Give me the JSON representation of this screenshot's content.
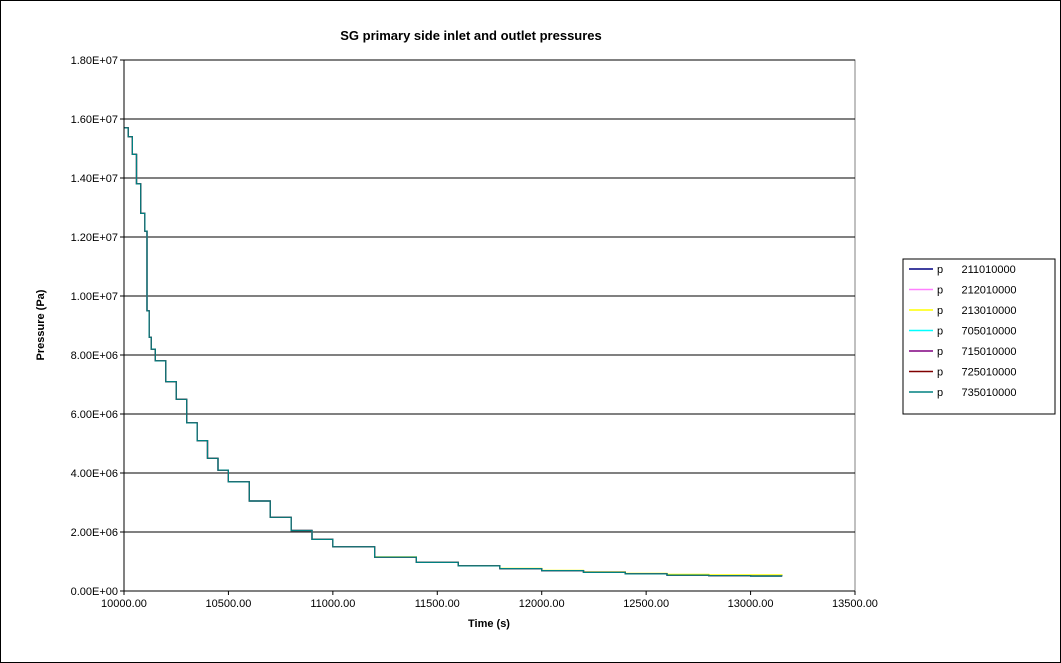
{
  "chart_data": {
    "type": "line",
    "title": "SG primary side inlet and outlet pressures",
    "xlabel": "Time (s)",
    "ylabel": "Pressure (Pa)",
    "xlim": [
      10000,
      13500
    ],
    "ylim": [
      0,
      18000000
    ],
    "x_ticks": [
      10000,
      10500,
      11000,
      11500,
      12000,
      12500,
      13000,
      13500
    ],
    "x_tick_labels": [
      "10000.00",
      "10500.00",
      "11000.00",
      "11500.00",
      "12000.00",
      "12500.00",
      "13000.00",
      "13500.00"
    ],
    "y_ticks": [
      0,
      2000000,
      4000000,
      6000000,
      8000000,
      10000000,
      12000000,
      14000000,
      16000000,
      18000000
    ],
    "y_tick_labels": [
      "0.00E+00",
      "2.00E+06",
      "4.00E+06",
      "6.00E+06",
      "8.00E+06",
      "1.00E+07",
      "1.20E+07",
      "1.40E+07",
      "1.60E+07",
      "1.80E+07"
    ],
    "grid": "horizontal",
    "legend_position": "right",
    "x": [
      10000,
      10020,
      10040,
      10060,
      10080,
      10100,
      10110,
      10120,
      10130,
      10150,
      10200,
      10250,
      10300,
      10350,
      10400,
      10450,
      10500,
      10600,
      10700,
      10800,
      10900,
      11000,
      11200,
      11400,
      11600,
      11800,
      12000,
      12200,
      12400,
      12600,
      12800,
      13000,
      13150
    ],
    "series": [
      {
        "name": "p      211010000",
        "color": "#000080",
        "values": [
          15700000,
          15400000,
          14800000,
          13800000,
          12800000,
          12200000,
          9500000,
          8600000,
          8200000,
          7800000,
          7100000,
          6500000,
          5700000,
          5100000,
          4500000,
          4100000,
          3700000,
          3050000,
          2500000,
          2050000,
          1750000,
          1500000,
          1150000,
          970000,
          850000,
          760000,
          690000,
          630000,
          580000,
          540000,
          520000,
          510000,
          500000
        ]
      },
      {
        "name": "p      212010000",
        "color": "#ff80ff",
        "values": [
          15700000,
          15400000,
          14800000,
          13800000,
          12800000,
          12200000,
          9500000,
          8600000,
          8200000,
          7800000,
          7100000,
          6500000,
          5700000,
          5100000,
          4500000,
          4100000,
          3700000,
          3050000,
          2500000,
          2050000,
          1750000,
          1500000,
          1150000,
          970000,
          850000,
          760000,
          690000,
          630000,
          580000,
          545000,
          525000,
          515000,
          505000
        ]
      },
      {
        "name": "p      213010000",
        "color": "#ffff00",
        "values": [
          15700000,
          15400000,
          14800000,
          13800000,
          12800000,
          12200000,
          9500000,
          8600000,
          8200000,
          7800000,
          7100000,
          6500000,
          5700000,
          5100000,
          4500000,
          4100000,
          3700000,
          3050000,
          2500000,
          2050000,
          1750000,
          1500000,
          1160000,
          980000,
          860000,
          770000,
          700000,
          650000,
          600000,
          565000,
          550000,
          545000,
          540000
        ]
      },
      {
        "name": "p      705010000",
        "color": "#00ffff",
        "values": [
          15700000,
          15400000,
          14800000,
          13800000,
          12800000,
          12200000,
          9500000,
          8600000,
          8200000,
          7800000,
          7100000,
          6500000,
          5700000,
          5100000,
          4500000,
          4100000,
          3700000,
          3050000,
          2500000,
          2050000,
          1750000,
          1500000,
          1150000,
          970000,
          850000,
          760000,
          690000,
          630000,
          580000,
          540000,
          520000,
          510000,
          500000
        ]
      },
      {
        "name": "p      715010000",
        "color": "#800080",
        "values": [
          15700000,
          15400000,
          14800000,
          13800000,
          12800000,
          12200000,
          9500000,
          8600000,
          8200000,
          7800000,
          7100000,
          6500000,
          5700000,
          5100000,
          4500000,
          4100000,
          3700000,
          3050000,
          2500000,
          2050000,
          1750000,
          1500000,
          1150000,
          970000,
          850000,
          760000,
          690000,
          630000,
          580000,
          540000,
          520000,
          510000,
          500000
        ]
      },
      {
        "name": "p      725010000",
        "color": "#800000",
        "values": [
          15700000,
          15400000,
          14800000,
          13800000,
          12800000,
          12200000,
          9500000,
          8600000,
          8200000,
          7800000,
          7100000,
          6500000,
          5700000,
          5100000,
          4500000,
          4100000,
          3700000,
          3050000,
          2500000,
          2050000,
          1750000,
          1500000,
          1150000,
          970000,
          850000,
          760000,
          690000,
          630000,
          580000,
          540000,
          520000,
          510000,
          500000
        ]
      },
      {
        "name": "p      735010000",
        "color": "#008080",
        "values": [
          15700000,
          15400000,
          14800000,
          13800000,
          12800000,
          12200000,
          9500000,
          8600000,
          8200000,
          7800000,
          7100000,
          6500000,
          5700000,
          5100000,
          4500000,
          4100000,
          3700000,
          3050000,
          2500000,
          2050000,
          1750000,
          1500000,
          1150000,
          970000,
          850000,
          760000,
          690000,
          630000,
          580000,
          540000,
          520000,
          510000,
          500000
        ]
      }
    ]
  }
}
